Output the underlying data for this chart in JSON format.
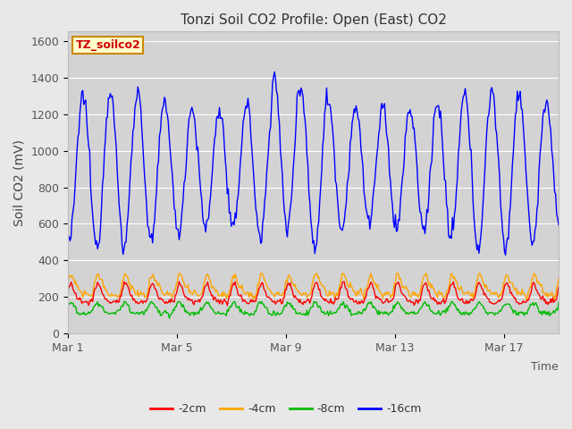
{
  "title": "Tonzi Soil CO2 Profile: Open (East) CO2",
  "ylabel": "Soil CO2 (mV)",
  "xlabel": "Time",
  "ylim": [
    0,
    1650
  ],
  "yticks": [
    0,
    200,
    400,
    600,
    800,
    1000,
    1200,
    1400,
    1600
  ],
  "fig_bg_color": "#e8e8e8",
  "plot_bg_color": "#d3d3d3",
  "legend_label": "TZ_soilco2",
  "series_labels": [
    "-2cm",
    "-4cm",
    "-8cm",
    "-16cm"
  ],
  "series_colors": [
    "#ff0000",
    "#ffa500",
    "#00bb00",
    "#0000ff"
  ],
  "x_tick_positions": [
    0,
    4,
    8,
    12,
    16
  ],
  "x_tick_labels": [
    "Mar 1",
    "Mar 5",
    "Mar 9",
    "Mar 13",
    "Mar 17"
  ],
  "n_points": 500,
  "days": 18,
  "title_fontsize": 11,
  "axis_label_fontsize": 10,
  "tick_fontsize": 9
}
